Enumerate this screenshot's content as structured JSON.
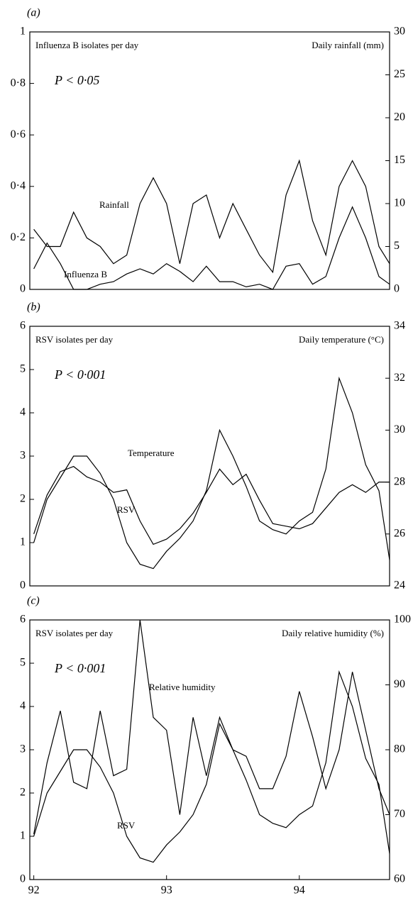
{
  "chart_data": [
    {
      "type": "line",
      "panel_label": "(a)",
      "ylabel": "Influenza B isolates per day",
      "y2label": "Daily rainfall (mm)",
      "annotation": "P < 0·05",
      "x": [
        92.0,
        92.1,
        92.2,
        92.3,
        92.4,
        92.5,
        92.6,
        92.7,
        92.8,
        92.9,
        93.0,
        93.1,
        93.2,
        93.3,
        93.4,
        93.5,
        93.6,
        93.7,
        93.8,
        93.9,
        94.0,
        94.1,
        94.2,
        94.3,
        94.4,
        94.5,
        94.6,
        94.68
      ],
      "xlim": [
        91.97,
        94.68
      ],
      "ylim": [
        0,
        1
      ],
      "yticks": [
        0,
        {
          "value": 0.2,
          "label": "0·2"
        },
        {
          "value": 0.4,
          "label": "0·4"
        },
        {
          "value": 0.6,
          "label": "0·6"
        },
        {
          "value": 0.8,
          "label": "0·8"
        },
        1
      ],
      "y2lim": [
        0,
        30
      ],
      "y2ticks": [
        0,
        5,
        10,
        15,
        20,
        25,
        30
      ],
      "series": [
        {
          "name": "Rainfall",
          "color": "#000000",
          "axis": "y2",
          "values": [
            7,
            5,
            5,
            9,
            6,
            5,
            3,
            4,
            10,
            13,
            10,
            3,
            10,
            11,
            6,
            10,
            7,
            4,
            2,
            11,
            15,
            8,
            4,
            12,
            15,
            12,
            5,
            3
          ]
        },
        {
          "name": "Influenza B",
          "color": "#000000",
          "values": [
            0.08,
            0.18,
            0.1,
            0.0,
            0.0,
            0.02,
            0.03,
            0.06,
            0.08,
            0.06,
            0.1,
            0.07,
            0.03,
            0.09,
            0.03,
            0.03,
            0.01,
            0.02,
            0.0,
            0.09,
            0.1,
            0.02,
            0.05,
            0.2,
            0.32,
            0.2,
            0.05,
            0.02
          ]
        }
      ]
    },
    {
      "type": "line",
      "panel_label": "(b)",
      "ylabel": "RSV isolates per day",
      "y2label": "Daily temperature (°C)",
      "annotation": "P < 0·001",
      "x": [
        92.0,
        92.1,
        92.2,
        92.3,
        92.4,
        92.5,
        92.6,
        92.7,
        92.8,
        92.9,
        93.0,
        93.1,
        93.2,
        93.3,
        93.4,
        93.5,
        93.6,
        93.7,
        93.8,
        93.9,
        94.0,
        94.1,
        94.2,
        94.3,
        94.4,
        94.5,
        94.6,
        94.68
      ],
      "xlim": [
        91.97,
        94.68
      ],
      "ylim": [
        0,
        6
      ],
      "yticks": [
        0,
        1,
        2,
        3,
        4,
        5,
        6
      ],
      "y2lim": [
        24,
        34
      ],
      "y2ticks": [
        24,
        26,
        28,
        30,
        32,
        34
      ],
      "series": [
        {
          "name": "Temperature",
          "color": "#000000",
          "axis": "y2",
          "values": [
            26.0,
            27.5,
            28.4,
            28.6,
            28.2,
            28.0,
            27.6,
            27.7,
            26.5,
            25.6,
            25.8,
            26.2,
            26.8,
            27.6,
            28.5,
            27.9,
            28.3,
            27.3,
            26.4,
            26.3,
            26.2,
            26.4,
            27.0,
            27.6,
            27.9,
            27.6,
            28.0,
            28.0
          ]
        },
        {
          "name": "RSV",
          "color": "#000000",
          "values": [
            1.0,
            2.0,
            2.5,
            3.0,
            3.0,
            2.6,
            2.0,
            1.0,
            0.5,
            0.4,
            0.8,
            1.1,
            1.5,
            2.2,
            3.6,
            3.0,
            2.3,
            1.5,
            1.3,
            1.2,
            1.5,
            1.7,
            2.7,
            4.8,
            4.0,
            2.8,
            2.2,
            0.6
          ]
        }
      ]
    },
    {
      "type": "line",
      "panel_label": "(c)",
      "ylabel": "RSV isolates per day",
      "y2label": "Daily relative humidity (%)",
      "annotation": "P < 0·001",
      "x": [
        92.0,
        92.1,
        92.2,
        92.3,
        92.4,
        92.5,
        92.6,
        92.7,
        92.8,
        92.9,
        93.0,
        93.1,
        93.2,
        93.3,
        93.4,
        93.5,
        93.6,
        93.7,
        93.8,
        93.9,
        94.0,
        94.1,
        94.2,
        94.3,
        94.4,
        94.5,
        94.6,
        94.68
      ],
      "xlim": [
        91.97,
        94.68
      ],
      "xticks": [
        92,
        93,
        94
      ],
      "ylim": [
        0,
        6
      ],
      "yticks": [
        0,
        1,
        2,
        3,
        4,
        5,
        6
      ],
      "y2lim": [
        60,
        100
      ],
      "y2ticks": [
        60,
        70,
        80,
        90,
        100
      ],
      "series": [
        {
          "name": "Relative humidity",
          "color": "#000000",
          "axis": "y2",
          "values": [
            67,
            78,
            86,
            75,
            74,
            86,
            76,
            77,
            100,
            85,
            83,
            70,
            85,
            76,
            85,
            80,
            79,
            74,
            74,
            79,
            89,
            82,
            74,
            80,
            92,
            83,
            74,
            70
          ]
        },
        {
          "name": "RSV",
          "color": "#000000",
          "values": [
            1.0,
            2.0,
            2.5,
            3.0,
            3.0,
            2.6,
            2.0,
            1.0,
            0.5,
            0.4,
            0.8,
            1.1,
            1.5,
            2.2,
            3.6,
            3.0,
            2.3,
            1.5,
            1.3,
            1.2,
            1.5,
            1.7,
            2.7,
            4.8,
            4.0,
            2.8,
            2.2,
            0.6
          ]
        }
      ]
    }
  ]
}
